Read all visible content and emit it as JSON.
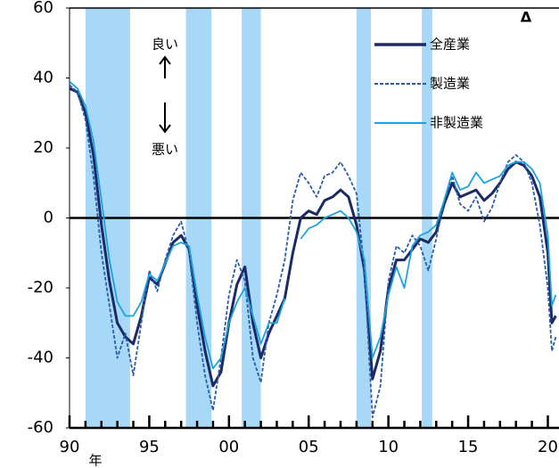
{
  "chart_data": {
    "type": "line",
    "x": [
      1990,
      1990.5,
      1991,
      1991.5,
      1992,
      1992.5,
      1993,
      1993.5,
      1994,
      1994.5,
      1995,
      1995.5,
      1996,
      1996.5,
      1997,
      1997.5,
      1998,
      1998.5,
      1999,
      1999.5,
      2000,
      2000.5,
      2001,
      2001.5,
      2002,
      2002.5,
      2003,
      2003.5,
      2004,
      2004.5,
      2005,
      2005.5,
      2006,
      2006.5,
      2007,
      2007.5,
      2008,
      2008.5,
      2009,
      2009.5,
      2010,
      2010.5,
      2011,
      2011.5,
      2012,
      2012.5,
      2013,
      2013.5,
      2014,
      2014.5,
      2015,
      2015.5,
      2016,
      2016.5,
      2017,
      2017.5,
      2018,
      2018.5,
      2019,
      2019.5,
      2020,
      2020.25,
      2020.5
    ],
    "series": [
      {
        "name": "全産業",
        "color": "#1b2a66",
        "dash": false,
        "values": [
          37,
          36,
          30,
          18,
          -2,
          -18,
          -30,
          -34,
          -36,
          -28,
          -17,
          -19,
          -13,
          -7,
          -5,
          -9,
          -25,
          -38,
          -48,
          -44,
          -30,
          -19,
          -14,
          -30,
          -40,
          -33,
          -28,
          -23,
          -10,
          0,
          2,
          1,
          5,
          6,
          8,
          6,
          -2,
          -15,
          -46,
          -38,
          -20,
          -12,
          -12,
          -9,
          -6,
          -7,
          -4,
          4,
          10,
          6,
          7,
          8,
          5,
          7,
          10,
          14,
          16,
          15,
          12,
          6,
          -10,
          -30,
          -28
        ]
      },
      {
        "name": "製造業",
        "color": "#2a5caa",
        "dash": true,
        "values": [
          38,
          36,
          28,
          12,
          -10,
          -25,
          -40,
          -33,
          -45,
          -30,
          -15,
          -21,
          -12,
          -5,
          -1,
          -10,
          -30,
          -45,
          -55,
          -40,
          -22,
          -12,
          -18,
          -40,
          -47,
          -30,
          -22,
          -12,
          5,
          13,
          10,
          6,
          12,
          13,
          16,
          12,
          7,
          -15,
          -57,
          -48,
          -18,
          -8,
          -10,
          -5,
          -8,
          -15,
          -6,
          5,
          12,
          4,
          2,
          6,
          -1,
          3,
          10,
          16,
          18,
          16,
          10,
          -2,
          -20,
          -38,
          -34
        ]
      },
      {
        "name": "非製造業",
        "color": "#1aa3e3",
        "dash": false,
        "values": [
          39,
          37,
          32,
          22,
          5,
          -12,
          -24,
          -28,
          -28,
          -24,
          -16,
          -18,
          -13,
          -8,
          -7,
          -8,
          -22,
          -34,
          -43,
          -40,
          -30,
          -24,
          -20,
          -28,
          -36,
          -30,
          -30,
          -23,
          null,
          -6,
          -3,
          -2,
          0,
          1,
          2,
          0,
          -4,
          -12,
          -40,
          -34,
          -22,
          -14,
          -20,
          -8,
          -5,
          -4,
          -2,
          5,
          13,
          8,
          9,
          13,
          10,
          11,
          12,
          15,
          16,
          16,
          14,
          10,
          -5,
          -25,
          -22
        ]
      }
    ],
    "shaded_periods": [
      [
        1991,
        1993.8
      ],
      [
        1997.3,
        1998.9
      ],
      [
        2000.8,
        2002
      ],
      [
        2008,
        2008.9
      ],
      [
        2012.1,
        2012.75
      ]
    ],
    "shade_color": "#a8d8f8",
    "xlim": [
      1990,
      2020.7
    ],
    "ylim": [
      -60,
      60
    ],
    "yticks": [
      -60,
      -40,
      -20,
      0,
      20,
      40,
      60
    ],
    "xticks": [
      {
        "value": 1990,
        "label": "90"
      },
      {
        "value": 1995,
        "label": "95"
      },
      {
        "value": 2000,
        "label": "00"
      },
      {
        "value": 2005,
        "label": "05"
      },
      {
        "value": 2010,
        "label": "10"
      },
      {
        "value": 2015,
        "label": "15"
      },
      {
        "value": 2020,
        "label": "20"
      }
    ],
    "xminor_ticks": [
      1991,
      1992,
      1993,
      1994,
      1996,
      1997,
      1998,
      1999,
      2001,
      2002,
      2003,
      2004,
      2006,
      2007,
      2008,
      2009,
      2011,
      2012,
      2013,
      2014,
      2016,
      2017,
      2018,
      2019
    ],
    "x_label": "年",
    "annotations": {
      "good": "良い",
      "bad": "悪い",
      "corner": "Δ"
    }
  }
}
